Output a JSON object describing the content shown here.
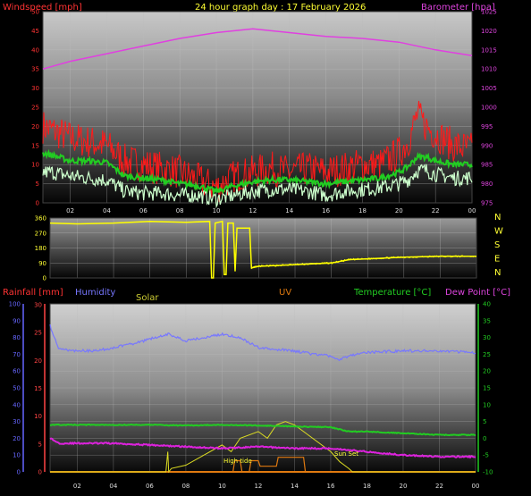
{
  "header": {
    "left_label": "Windspeed [mph]",
    "center_title": "24 hour graph day : 17 February 2026",
    "right_label": "Barometer [hpa]"
  },
  "bottom_header": {
    "rainfall": "Rainfall [mm]",
    "humidity": "Humidity",
    "solar": "Solar",
    "uv": "UV",
    "temperature": "Temperature [°C]",
    "dewpoint": "Dew Point [°C]"
  },
  "annotations": {
    "high_tide": "High tide",
    "sun_set": "Sun Set"
  },
  "colors": {
    "wind_gust": "#ff1a1a",
    "wind_avg": "#22cc22",
    "wind_low": "#ccffcc",
    "barometer": "#e040e0",
    "direction": "#ffff00",
    "humidity": "#7777ff",
    "temperature": "#22cc22",
    "dewpoint": "#dd22dd",
    "solar": "#dddd22",
    "uv": "#e07a10",
    "rain_axis": "#ff4444",
    "humidity_axis": "#6666ff",
    "temp_axis": "#22cc22",
    "yellow_text": "#ffff33"
  },
  "chart_data": [
    {
      "type": "line",
      "panel": "wind-barometer",
      "x_ticks": [
        "02",
        "04",
        "06",
        "08",
        "10",
        "12",
        "14",
        "16",
        "18",
        "20",
        "22",
        "00"
      ],
      "y_left_ticks": [
        "0",
        "5",
        "10",
        "15",
        "20",
        "25",
        "30",
        "35",
        "40",
        "45",
        "50"
      ],
      "y_left_range": [
        0,
        50
      ],
      "y_right_ticks": [
        "975",
        "980",
        "985",
        "990",
        "995",
        "1000",
        "1005",
        "1010",
        "1015",
        "1020",
        "1025"
      ],
      "y_right_range": [
        975,
        1025
      ],
      "x_range_hours": [
        0.5,
        24
      ],
      "series": [
        {
          "key": "gust",
          "hours": [
            0.5,
            1,
            2,
            3,
            4,
            5,
            6,
            7,
            8,
            9,
            10,
            11,
            12,
            13,
            14,
            15,
            16,
            17,
            18,
            19,
            20,
            20.5,
            21,
            21.5,
            22,
            23,
            24
          ],
          "values": [
            20,
            19,
            17,
            16,
            15,
            11,
            10,
            9,
            8,
            6,
            4,
            7,
            8,
            9,
            8,
            9,
            8,
            9,
            10,
            10,
            13,
            16,
            23,
            20,
            18,
            15,
            14
          ]
        },
        {
          "key": "average",
          "hours": [
            0.5,
            1,
            2,
            3,
            4,
            5,
            6,
            7,
            8,
            9,
            10,
            11,
            12,
            13,
            14,
            15,
            16,
            17,
            18,
            19,
            20,
            20.5,
            21,
            21.5,
            22,
            23,
            24
          ],
          "values": [
            13,
            12.5,
            11,
            11,
            10.5,
            7,
            6.5,
            6,
            5,
            4.5,
            3,
            4.5,
            5.5,
            6,
            6,
            5.5,
            5,
            5.5,
            6,
            6.5,
            8,
            9.5,
            12,
            12,
            11,
            10,
            10
          ]
        },
        {
          "key": "low",
          "hours": [
            0.5,
            1,
            2,
            3,
            4,
            5,
            6,
            7,
            8,
            9,
            10,
            11,
            12,
            13,
            14,
            15,
            16,
            17,
            18,
            19,
            20,
            20.5,
            21,
            21.5,
            22,
            23,
            24
          ],
          "values": [
            8,
            8,
            7,
            6.5,
            6,
            3,
            2.5,
            2.5,
            2,
            2,
            1,
            2,
            3,
            3.5,
            3.5,
            3,
            2,
            3,
            3.5,
            4,
            5,
            6,
            8.5,
            8.5,
            7.5,
            6.5,
            6.5
          ]
        },
        {
          "key": "barometer",
          "hours": [
            0.5,
            2,
            4,
            6,
            8,
            10,
            12,
            14,
            16,
            18,
            20,
            22,
            24
          ],
          "values": [
            1010,
            1012,
            1014,
            1016,
            1018,
            1019.5,
            1020.5,
            1019.5,
            1018.5,
            1018,
            1017,
            1015,
            1013.5
          ]
        }
      ]
    },
    {
      "type": "line",
      "panel": "wind-direction",
      "y_ticks": [
        "0",
        "90",
        "180",
        "270",
        "360"
      ],
      "y_range": [
        0,
        360
      ],
      "compass_labels": [
        "N",
        "W",
        "S",
        "E",
        "N"
      ],
      "series": [
        {
          "key": "direction",
          "hours": [
            0.5,
            2,
            4,
            6,
            8,
            9.3,
            9.4,
            9.5,
            9.6,
            10.0,
            10.1,
            10.2,
            10.3,
            10.6,
            10.7,
            10.8,
            11.5,
            11.6,
            12,
            14,
            16,
            17,
            18,
            20,
            22,
            24
          ],
          "values": [
            330,
            325,
            330,
            340,
            335,
            340,
            0,
            0,
            330,
            340,
            20,
            20,
            330,
            330,
            40,
            300,
            300,
            60,
            70,
            80,
            90,
            110,
            115,
            125,
            130,
            130
          ]
        }
      ]
    },
    {
      "type": "line",
      "panel": "temperature-humidity",
      "y_rain_ticks": [
        "0",
        "5",
        "10",
        "15",
        "20",
        "25",
        "30"
      ],
      "y_rain_range": [
        0,
        30
      ],
      "y_humidity_ticks": [
        "0",
        "10",
        "20",
        "30",
        "40",
        "50",
        "60",
        "70",
        "80",
        "90",
        "100"
      ],
      "y_humidity_range": [
        0,
        100
      ],
      "y_temp_ticks": [
        "-10",
        "-5",
        "0",
        "5",
        "10",
        "15",
        "20",
        "25",
        "30",
        "35",
        "40"
      ],
      "y_temp_range": [
        -10,
        40
      ],
      "series": [
        {
          "key": "humidity",
          "hours": [
            0.5,
            1,
            2,
            3,
            4,
            5,
            6,
            7,
            8,
            9,
            10,
            11,
            12,
            13,
            14,
            15,
            16,
            16.5,
            17,
            18,
            20,
            22,
            24
          ],
          "values": [
            87,
            73,
            72,
            72,
            74,
            76,
            79,
            82,
            78,
            80,
            82,
            80,
            74,
            73,
            72,
            70,
            69,
            67,
            69,
            71,
            72,
            72,
            71
          ]
        },
        {
          "key": "temperature",
          "hours": [
            0.5,
            2,
            4,
            6,
            8,
            10,
            12,
            14,
            16,
            17,
            18,
            20,
            22,
            24
          ],
          "values": [
            4,
            4,
            4,
            4,
            3.8,
            4,
            3.8,
            3.5,
            3.3,
            2,
            2,
            1.5,
            1,
            1
          ]
        },
        {
          "key": "dewpoint",
          "hours": [
            0.5,
            1,
            2,
            4,
            6,
            8,
            10,
            12,
            14,
            16,
            18,
            20,
            22,
            24
          ],
          "values": [
            0,
            -1.5,
            -1.5,
            -1.5,
            -2,
            -2.5,
            -3,
            -2.5,
            -3,
            -3,
            -4,
            -5,
            -5.5,
            -5.5
          ]
        },
        {
          "key": "solar",
          "hours": [
            0.5,
            6.9,
            7.0,
            7.05,
            7.2,
            8,
            9,
            10,
            10.5,
            11,
            12,
            12.5,
            13,
            13.5,
            14,
            14.5,
            15,
            16,
            16.5,
            17,
            17.2,
            24
          ],
          "values": [
            0,
            0,
            3,
            0,
            0.5,
            1,
            2.5,
            4,
            3,
            5,
            6,
            5,
            7,
            7.5,
            7,
            6,
            5,
            3,
            1.5,
            0.5,
            0,
            0
          ]
        },
        {
          "key": "uv",
          "hours": [
            0.5,
            10.6,
            10.7,
            11.0,
            11.1,
            11.5,
            11.6,
            12,
            12.1,
            13,
            13.1,
            14.5,
            14.6,
            24
          ],
          "values": [
            0,
            0,
            1,
            1,
            0,
            0,
            1,
            1,
            0.5,
            0.5,
            1.3,
            1.3,
            0,
            0
          ]
        },
        {
          "key": "rainfall",
          "hours": [
            0.5,
            24
          ],
          "values": [
            0,
            0
          ]
        }
      ]
    }
  ]
}
